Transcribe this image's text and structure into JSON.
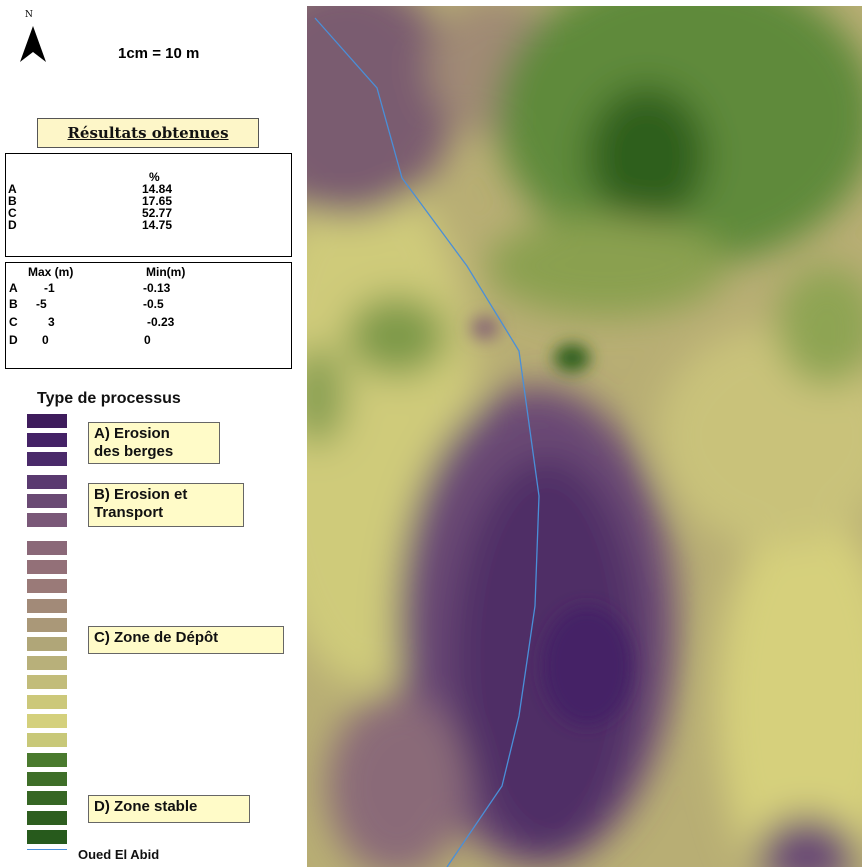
{
  "legend": {
    "north_letter": "N",
    "scale": "1cm = 10 m",
    "results_title": "Résultats  obtenues",
    "percent_table": {
      "header": "%",
      "rows": [
        {
          "label": "A",
          "value": "14.84"
        },
        {
          "label": "B",
          "value": "17.65"
        },
        {
          "label": "C",
          "value": "52.77"
        },
        {
          "label": "D",
          "value": "14.75"
        }
      ]
    },
    "maxmin_table": {
      "max_header": "Max (m)",
      "min_header": "Min(m)",
      "rows": [
        {
          "label": "A",
          "max": "-1",
          "min": "-0.13"
        },
        {
          "label": "B",
          "max": "-5",
          "min": "-0.5"
        },
        {
          "label": "C",
          "max": "3",
          "min": "-0.23"
        },
        {
          "label": "D",
          "max": "0",
          "min": "0"
        }
      ]
    },
    "process_title": "Type de processus",
    "classes": [
      {
        "label_line1": "A) Erosion",
        "label_line2": "des berges",
        "colors": [
          "#3e1c5c",
          "#442266",
          "#4a2a6a"
        ]
      },
      {
        "label_line1": "B) Erosion et",
        "label_line2": "Transport",
        "colors": [
          "#5a3a70",
          "#6a4a74",
          "#7a5878"
        ]
      },
      {
        "label_line1": "C) Zone de Dépôt",
        "label_line2": "",
        "colors": [
          "#8a6878",
          "#937078",
          "#9a7a78",
          "#a28a78",
          "#aa9878",
          "#b0a678",
          "#b8b07a",
          "#c2bc7a",
          "#ccc87a",
          "#d4d07c",
          "#c8c878"
        ]
      },
      {
        "label_line1": "D) Zone stable",
        "label_line2": "",
        "colors": [
          "#4a7a2e",
          "#3e6e28",
          "#366624",
          "#2e5e20",
          "#275a1c"
        ]
      }
    ],
    "river_label": "Oued El Abid"
  }
}
